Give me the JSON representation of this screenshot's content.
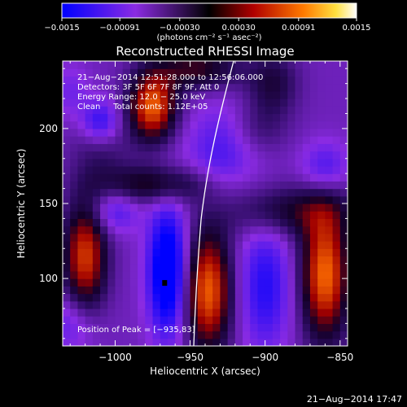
{
  "chart_data": {
    "type": "heatmap",
    "title": "Reconstructed RHESSI Image",
    "xlabel": "Heliocentric X (arcsec)",
    "ylabel": "Heliocentric Y (arcsec)",
    "xlim": [
      -1035,
      -845
    ],
    "ylim": [
      55,
      245
    ],
    "xticks": [
      -1000,
      -950,
      -900,
      -850
    ],
    "xtick_labels": [
      "−1000",
      "−950",
      "−900",
      "−850"
    ],
    "yticks": [
      100,
      150,
      200
    ],
    "ytick_labels": [
      "100",
      "150",
      "200"
    ],
    "colorbar": {
      "min": -0.0015,
      "max": 0.0015,
      "ticks": [
        -0.0015,
        -0.00091,
        -0.0003,
        0.0003,
        0.00091,
        0.0015
      ],
      "tick_labels": [
        "−0.0015",
        "−0.00091",
        "−0.00030",
        "0.00030",
        "0.00091",
        "0.0015"
      ],
      "unit_label": "(photons cm⁻² s⁻¹ asec⁻²)"
    },
    "annotations": [
      "21−Aug−2014 12:51:28.000 to 12:56:06.000",
      "Detectors: 3F 5F 6F 7F 8F 9F, Att 0",
      "Energy Range: 12.0 − 25.0 keV",
      "Clean     Total counts: 1.12E+05"
    ],
    "peak_label": "Position of Peak = [−935,83]",
    "peak": [
      -935,
      83
    ],
    "blobs": [
      {
        "x": -975,
        "y": 215,
        "sx": 11,
        "sy": 16,
        "v": 0.00135
      },
      {
        "x": -945,
        "y": 240,
        "sx": 20,
        "sy": 10,
        "v": 0.0007
      },
      {
        "x": -1020,
        "y": 115,
        "sx": 10,
        "sy": 25,
        "v": 0.0012
      },
      {
        "x": -938,
        "y": 92,
        "sx": 11,
        "sy": 28,
        "v": 0.00135
      },
      {
        "x": -860,
        "y": 103,
        "sx": 11,
        "sy": 30,
        "v": 0.0014
      },
      {
        "x": -972,
        "y": 163,
        "sx": 26,
        "sy": 9,
        "v": 0.0007
      },
      {
        "x": -885,
        "y": 145,
        "sx": 30,
        "sy": 12,
        "v": 0.0006
      },
      {
        "x": -895,
        "y": 230,
        "sx": 12,
        "sy": 15,
        "v": 0.0005
      },
      {
        "x": -905,
        "y": 200,
        "sx": 14,
        "sy": 12,
        "v": 0.00028
      },
      {
        "x": -1010,
        "y": 185,
        "sx": 14,
        "sy": 18,
        "v": 0.0003
      },
      {
        "x": -965,
        "y": 105,
        "sx": 9,
        "sy": 30,
        "v": -0.0013
      },
      {
        "x": -1010,
        "y": 205,
        "sx": 9,
        "sy": 10,
        "v": -0.0007
      },
      {
        "x": -930,
        "y": 185,
        "sx": 16,
        "sy": 22,
        "v": -0.0005
      },
      {
        "x": -900,
        "y": 95,
        "sx": 12,
        "sy": 30,
        "v": -0.0007
      },
      {
        "x": -1000,
        "y": 145,
        "sx": 11,
        "sy": 10,
        "v": -0.0005
      },
      {
        "x": -1030,
        "y": 70,
        "sx": 12,
        "sy": 14,
        "v": -0.0004
      },
      {
        "x": -860,
        "y": 175,
        "sx": 11,
        "sy": 12,
        "v": -0.0005
      },
      {
        "x": -1030,
        "y": 225,
        "sx": 9,
        "sy": 12,
        "v": -0.0003
      }
    ]
  },
  "footer": {
    "timestamp": "21−Aug−2014 17:47"
  }
}
